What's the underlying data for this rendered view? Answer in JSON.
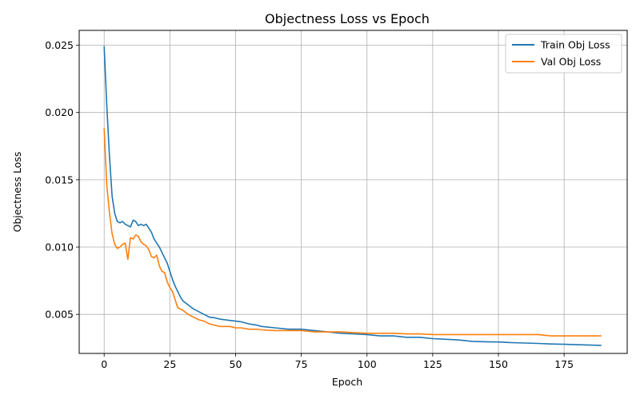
{
  "chart_data": {
    "type": "line",
    "title": "Objectness Loss vs Epoch",
    "xlabel": "Epoch",
    "ylabel": "Objectness Loss",
    "xlim": [
      -9.5,
      199
    ],
    "ylim": [
      0.0021,
      0.0261
    ],
    "xticks": [
      0,
      25,
      50,
      75,
      100,
      125,
      150,
      175
    ],
    "xtick_labels": [
      "0",
      "25",
      "50",
      "75",
      "100",
      "125",
      "150",
      "175"
    ],
    "yticks": [
      0.005,
      0.01,
      0.015,
      0.02,
      0.025
    ],
    "ytick_labels": [
      "0.005",
      "0.010",
      "0.015",
      "0.020",
      "0.025"
    ],
    "grid": true,
    "legend_position": "top-right",
    "series": [
      {
        "name": "Train Obj Loss",
        "color": "#1f77b4",
        "x": [
          0,
          1,
          2,
          3,
          4,
          5,
          6,
          7,
          8,
          9,
          10,
          11,
          12,
          13,
          14,
          15,
          16,
          17,
          18,
          19,
          20,
          21,
          22,
          23,
          24,
          25,
          26,
          27,
          28,
          29,
          30,
          32,
          34,
          36,
          38,
          40,
          42,
          44,
          46,
          48,
          50,
          52,
          55,
          58,
          60,
          65,
          70,
          75,
          80,
          85,
          90,
          95,
          100,
          105,
          110,
          115,
          120,
          125,
          130,
          135,
          140,
          145,
          150,
          155,
          160,
          165,
          170,
          175,
          180,
          185,
          189
        ],
        "y": [
          0.0249,
          0.0205,
          0.0168,
          0.0138,
          0.0125,
          0.0119,
          0.0118,
          0.0119,
          0.0117,
          0.0116,
          0.0115,
          0.012,
          0.0119,
          0.0116,
          0.0117,
          0.0116,
          0.0117,
          0.0114,
          0.0111,
          0.0106,
          0.0103,
          0.01,
          0.0096,
          0.0092,
          0.0088,
          0.0082,
          0.0076,
          0.0071,
          0.0067,
          0.0063,
          0.006,
          0.0057,
          0.0054,
          0.0052,
          0.005,
          0.0048,
          0.00475,
          0.00465,
          0.0046,
          0.00455,
          0.0045,
          0.00445,
          0.0043,
          0.0042,
          0.0041,
          0.004,
          0.0039,
          0.0039,
          0.0038,
          0.0037,
          0.0036,
          0.00355,
          0.0035,
          0.0034,
          0.0034,
          0.0033,
          0.0033,
          0.0032,
          0.00315,
          0.0031,
          0.003,
          0.00297,
          0.00295,
          0.0029,
          0.00287,
          0.00284,
          0.0028,
          0.00278,
          0.00275,
          0.00272,
          0.0027
        ]
      },
      {
        "name": "Val Obj Loss",
        "color": "#ff7f0e",
        "x": [
          0,
          1,
          2,
          3,
          4,
          5,
          6,
          7,
          8,
          9,
          10,
          11,
          12,
          13,
          14,
          15,
          16,
          17,
          18,
          19,
          20,
          21,
          22,
          23,
          24,
          25,
          26,
          27,
          28,
          30,
          32,
          34,
          36,
          38,
          40,
          42,
          44,
          46,
          48,
          50,
          52,
          55,
          58,
          60,
          65,
          70,
          75,
          80,
          85,
          90,
          95,
          100,
          105,
          110,
          115,
          120,
          125,
          130,
          135,
          140,
          145,
          150,
          155,
          160,
          165,
          170,
          175,
          180,
          185,
          189
        ],
        "y": [
          0.0188,
          0.0146,
          0.0126,
          0.011,
          0.0102,
          0.0099,
          0.01,
          0.0102,
          0.0103,
          0.0091,
          0.0107,
          0.0106,
          0.0109,
          0.0108,
          0.0104,
          0.0102,
          0.0101,
          0.0098,
          0.0093,
          0.0092,
          0.0094,
          0.0086,
          0.0082,
          0.0081,
          0.0074,
          0.007,
          0.0067,
          0.0061,
          0.0055,
          0.0053,
          0.005,
          0.0048,
          0.0046,
          0.0045,
          0.0043,
          0.0042,
          0.0041,
          0.0041,
          0.0041,
          0.004,
          0.004,
          0.0039,
          0.0039,
          0.00385,
          0.0038,
          0.0038,
          0.0038,
          0.0037,
          0.0037,
          0.0037,
          0.00365,
          0.0036,
          0.0036,
          0.0036,
          0.00355,
          0.00355,
          0.0035,
          0.0035,
          0.0035,
          0.0035,
          0.0035,
          0.0035,
          0.0035,
          0.0035,
          0.0035,
          0.0034,
          0.0034,
          0.0034,
          0.0034,
          0.0034
        ]
      }
    ]
  }
}
